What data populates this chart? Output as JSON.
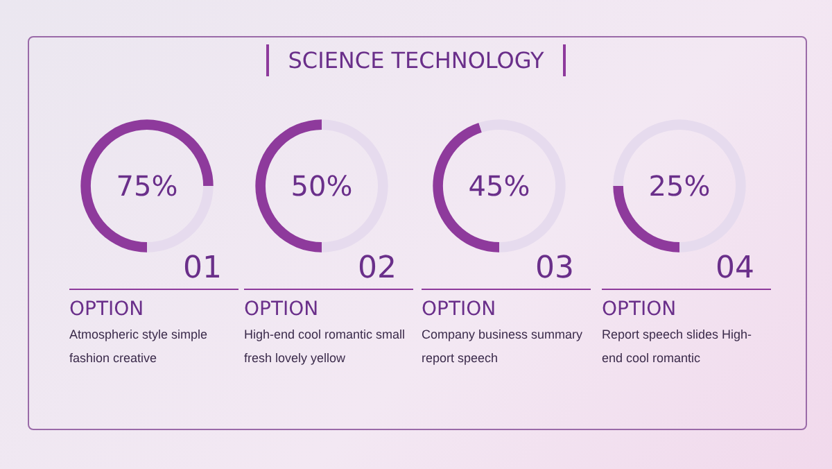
{
  "chart_data": [
    {
      "type": "other",
      "title": "SCIENCE TECHNOLOGY"
    },
    {
      "type": "donut",
      "title": "OPTION",
      "categories": [
        null,
        null
      ],
      "values": [
        75,
        25
      ],
      "colors": [
        "#8e3a9c",
        "#e6dbee"
      ],
      "annotations": [
        "75%",
        "01",
        "Atmospheric style simple fashion creative"
      ]
    },
    {
      "type": "donut",
      "title": "OPTION",
      "categories": [
        null,
        null
      ],
      "values": [
        50,
        50
      ],
      "colors": [
        "#8e3a9c",
        "#e6dbee"
      ],
      "annotations": [
        "50%",
        "02",
        "High-end cool romantic small fresh lovely yellow"
      ]
    },
    {
      "type": "donut",
      "title": "OPTION",
      "categories": [
        null,
        null
      ],
      "values": [
        45,
        55
      ],
      "colors": [
        "#8e3a9c",
        "#e6dbee"
      ],
      "annotations": [
        "45%",
        "03",
        "Company business summary report speech"
      ]
    },
    {
      "type": "donut",
      "title": "OPTION",
      "categories": [
        null,
        null
      ],
      "values": [
        25,
        75
      ],
      "colors": [
        "#8e3a9c",
        "#e6dbee"
      ],
      "annotations": [
        "25%",
        "04",
        "Report speech slides High-end cool romantic"
      ]
    }
  ]
}
